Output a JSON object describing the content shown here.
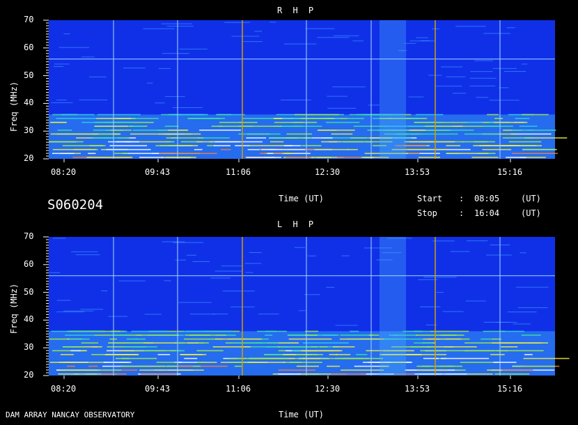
{
  "chart_data": [
    {
      "type": "heatmap",
      "title": "R H P",
      "ylabel": "Freq (MHz)",
      "xlabel": "Time (UT)",
      "ylim": [
        20,
        70
      ],
      "y_ticks": [
        "70",
        "60",
        "50",
        "40",
        "30",
        "20"
      ],
      "x_ticks": [
        "08:20",
        "09:43",
        "11:06",
        "12:30",
        "13:53",
        "15:16"
      ]
    },
    {
      "type": "heatmap",
      "title": "L H P",
      "ylabel": "Freq (MHz)",
      "xlabel": "Time (UT)",
      "ylim": [
        20,
        70
      ],
      "y_ticks": [
        "70",
        "60",
        "50",
        "40",
        "30",
        "20"
      ],
      "x_ticks": [
        "08:20",
        "09:43",
        "11:06",
        "12:30",
        "13:53",
        "15:16"
      ]
    }
  ],
  "session_id": "S060204",
  "start_label": "Start",
  "start_sep": ":",
  "start_time": "08:05",
  "start_unit": "(UT)",
  "stop_label": "Stop",
  "stop_sep": ":",
  "stop_time": "16:04",
  "stop_unit": "(UT)",
  "footer": "DAM ARRAY  NANCAY OBSERVATORY",
  "colors": {
    "background": "#000000",
    "baseline": "#1030e8",
    "interference_line": "#d0a000"
  }
}
